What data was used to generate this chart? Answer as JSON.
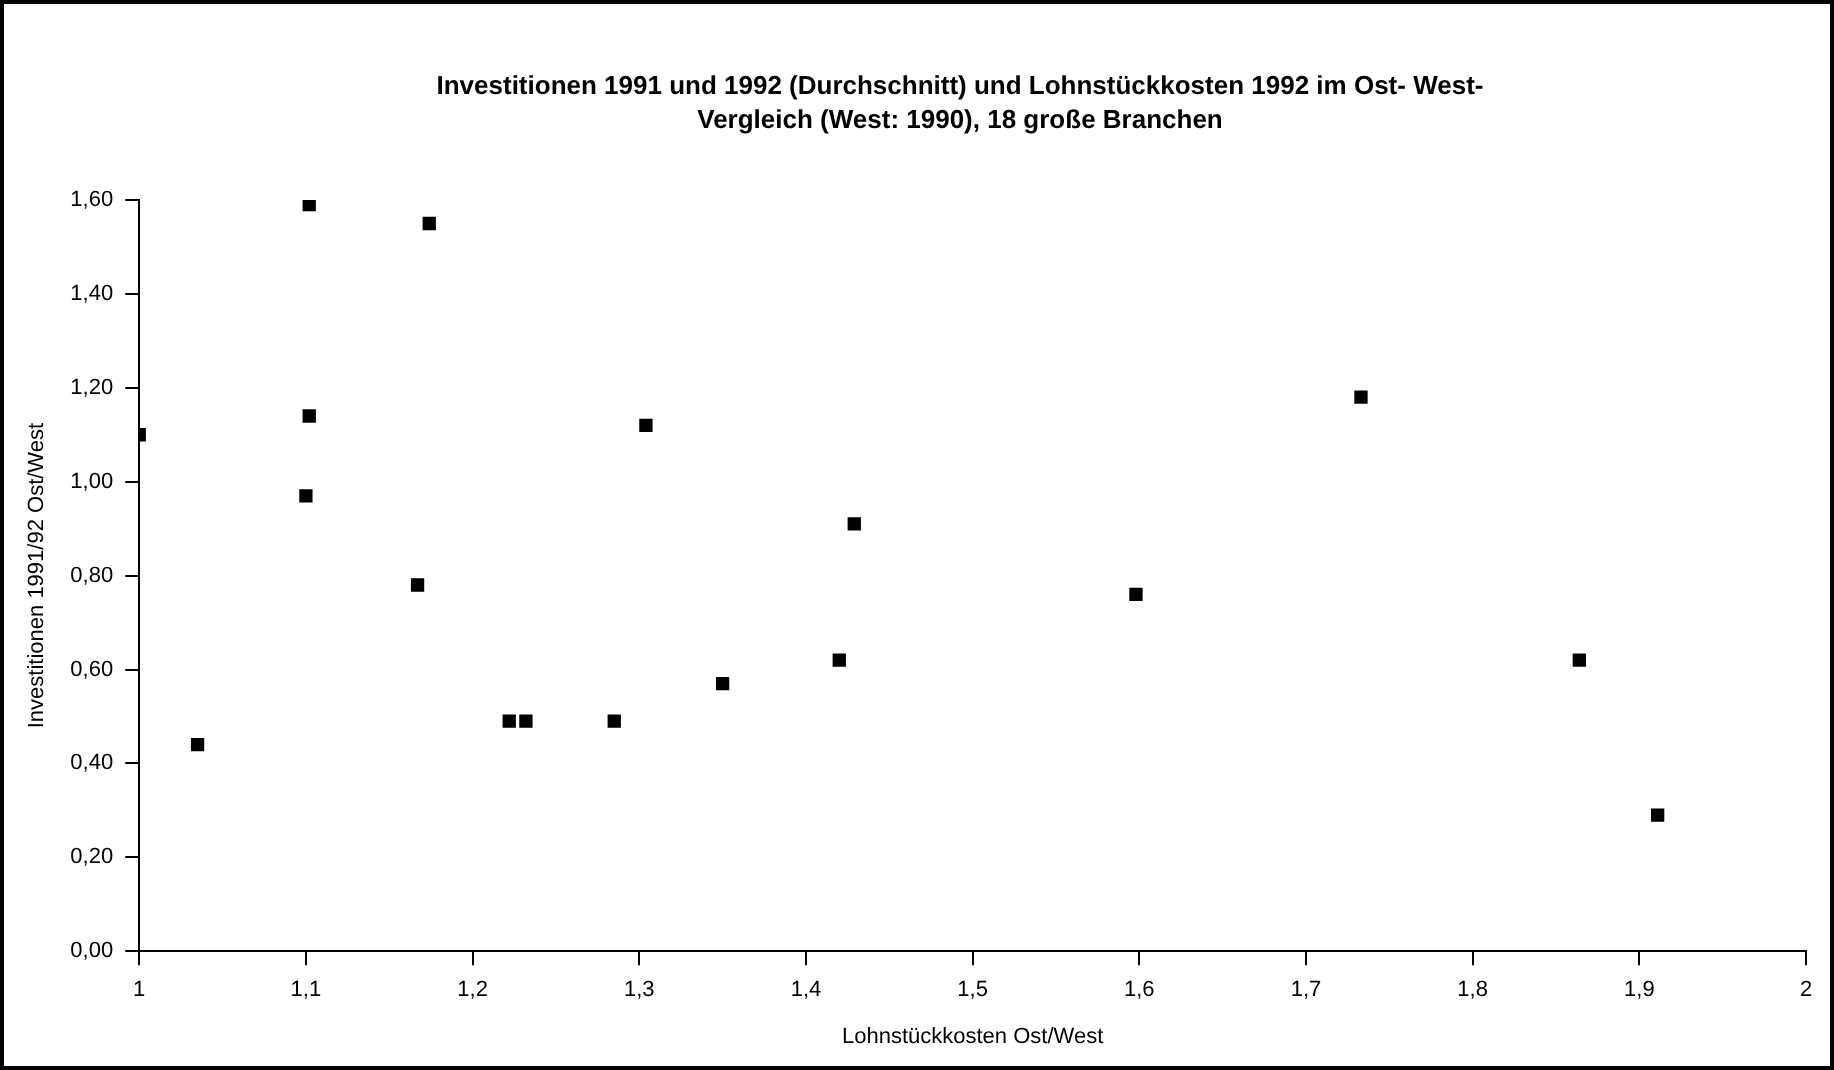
{
  "chart_data": {
    "type": "scatter",
    "title": "Investitionen 1991 und 1992 (Durchschnitt) und Lohnstückkosten 1992 im Ost- West-Vergleich (West: 1990), 18 große Branchen",
    "xlabel": "Lohnstückkosten Ost/West",
    "ylabel": "Investitionen 1991/92 Ost/West",
    "x": [
      1.0,
      1.035,
      1.1,
      1.102,
      1.102,
      1.167,
      1.174,
      1.222,
      1.232,
      1.285,
      1.304,
      1.35,
      1.42,
      1.429,
      1.598,
      1.733,
      1.864,
      1.911
    ],
    "series": [
      {
        "color": "#000000",
        "values": [
          1.1,
          0.44,
          0.97,
          1.59,
          1.14,
          0.78,
          1.55,
          0.49,
          0.49,
          0.49,
          1.12,
          0.57,
          0.62,
          0.91,
          0.76,
          1.18,
          0.62,
          0.29
        ]
      }
    ],
    "xlim": [
      1,
      2
    ],
    "xticks": [
      1,
      {
        "value": 1.1,
        "label": "1,1"
      },
      {
        "value": 1.2,
        "label": "1,2"
      },
      {
        "value": 1.3,
        "label": "1,3"
      },
      {
        "value": 1.4,
        "label": "1,4"
      },
      {
        "value": 1.5,
        "label": "1,5"
      },
      {
        "value": 1.6,
        "label": "1,6"
      },
      {
        "value": 1.7,
        "label": "1,7"
      },
      {
        "value": 1.8,
        "label": "1,8"
      },
      {
        "value": 1.9,
        "label": "1,9"
      },
      2
    ],
    "ylim": [
      0,
      1.6
    ],
    "yticks": [
      {
        "value": 0,
        "label": "0,00"
      },
      {
        "value": 0.2,
        "label": "0,20"
      },
      {
        "value": 0.4,
        "label": "0,40"
      },
      {
        "value": 0.6,
        "label": "0,60"
      },
      {
        "value": 0.8,
        "label": "0,80"
      },
      {
        "value": 1.0,
        "label": "1,00"
      },
      {
        "value": 1.2,
        "label": "1,20"
      },
      {
        "value": 1.4,
        "label": "1,40"
      },
      {
        "value": 1.6,
        "label": "1,60"
      }
    ],
    "grid": false,
    "legend": false,
    "marker": "square"
  }
}
